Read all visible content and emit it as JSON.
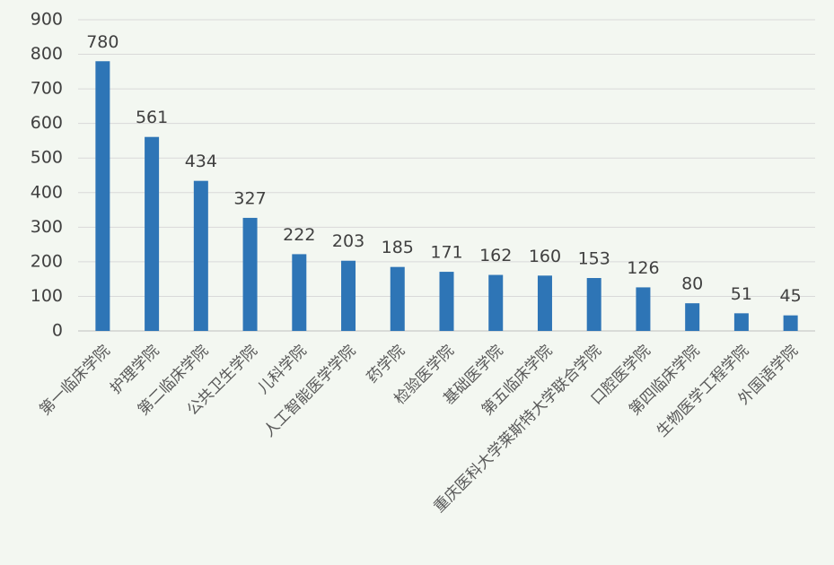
{
  "chart_data": {
    "type": "bar",
    "categories": [
      "第一临床学院",
      "护理学院",
      "第二临床学院",
      "公共卫生学院",
      "儿科学院",
      "人工智能医学学院",
      "药学院",
      "检验医学院",
      "基础医学院",
      "第五临床学院",
      "重庆医科大学莱斯特大学联合学院",
      "口腔医学院",
      "第四临床学院",
      "生物医学工程学院",
      "外国语学院"
    ],
    "values": [
      780,
      561,
      434,
      327,
      222,
      203,
      185,
      171,
      162,
      160,
      153,
      126,
      80,
      51,
      45
    ],
    "color": "#2e75b6",
    "ylim": [
      0,
      900
    ],
    "yticks": [
      0,
      100,
      200,
      300,
      400,
      500,
      600,
      700,
      800,
      900
    ],
    "grid": true
  }
}
